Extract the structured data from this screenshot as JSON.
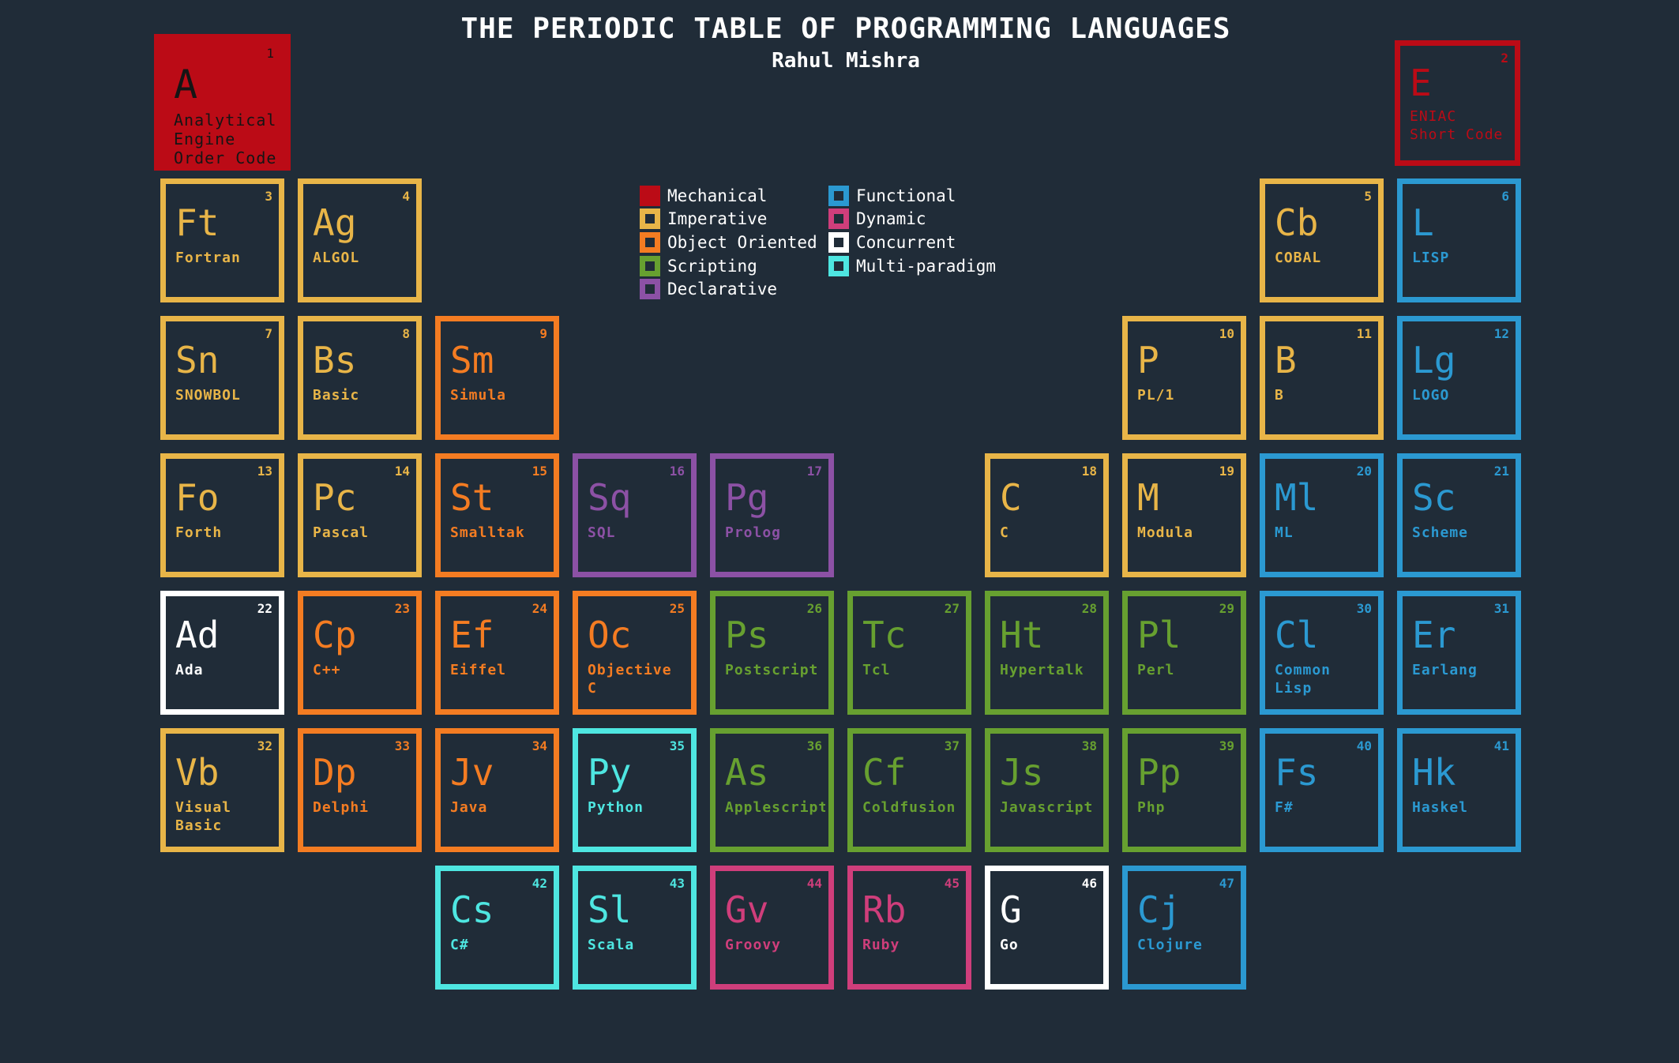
{
  "header": {
    "title": "THE PERIODIC TABLE OF PROGRAMMING LANGUAGES",
    "author": "Rahul Mishra"
  },
  "colors": {
    "background": "#202c38",
    "mechanical": "#bb0b16",
    "imperative": "#e8b548",
    "object_oriented": "#f47c22",
    "scripting": "#67a030",
    "declarative": "#8c51a5",
    "functional": "#2b99d1",
    "dynamic": "#cf3e7b",
    "concurrent": "#ffffff",
    "multi_paradigm": "#4ee6e1"
  },
  "legend": {
    "col1": [
      {
        "label": "Mechanical",
        "category": "mechanical"
      },
      {
        "label": "Imperative",
        "category": "imperative"
      },
      {
        "label": "Object Oriented",
        "category": "object_oriented"
      },
      {
        "label": "Scripting",
        "category": "scripting"
      },
      {
        "label": "Declarative",
        "category": "declarative"
      }
    ],
    "col2": [
      {
        "label": "Functional",
        "category": "functional"
      },
      {
        "label": "Dynamic",
        "category": "dynamic"
      },
      {
        "label": "Concurrent",
        "category": "concurrent"
      },
      {
        "label": "Multi-paradigm",
        "category": "multi_paradigm"
      }
    ]
  },
  "elements": [
    {
      "num": "1",
      "sym": "A",
      "name": "Analytical Engine Order Code",
      "category": "mechanical"
    },
    {
      "num": "2",
      "sym": "E",
      "name": "ENIAC Short Code",
      "category": "mechanical"
    },
    {
      "num": "3",
      "sym": "Ft",
      "name": "Fortran",
      "category": "imperative"
    },
    {
      "num": "4",
      "sym": "Ag",
      "name": "ALGOL",
      "category": "imperative"
    },
    {
      "num": "5",
      "sym": "Cb",
      "name": "COBAL",
      "category": "imperative"
    },
    {
      "num": "6",
      "sym": "L",
      "name": "LISP",
      "category": "functional"
    },
    {
      "num": "7",
      "sym": "Sn",
      "name": "SNOWBOL",
      "category": "imperative"
    },
    {
      "num": "8",
      "sym": "Bs",
      "name": "Basic",
      "category": "imperative"
    },
    {
      "num": "9",
      "sym": "Sm",
      "name": "Simula",
      "category": "object_oriented"
    },
    {
      "num": "10",
      "sym": "P",
      "name": "PL/1",
      "category": "imperative"
    },
    {
      "num": "11",
      "sym": "B",
      "name": "B",
      "category": "imperative"
    },
    {
      "num": "12",
      "sym": "Lg",
      "name": "LOGO",
      "category": "functional"
    },
    {
      "num": "13",
      "sym": "Fo",
      "name": "Forth",
      "category": "imperative"
    },
    {
      "num": "14",
      "sym": "Pc",
      "name": "Pascal",
      "category": "imperative"
    },
    {
      "num": "15",
      "sym": "St",
      "name": "Smalltak",
      "category": "object_oriented"
    },
    {
      "num": "16",
      "sym": "Sq",
      "name": "SQL",
      "category": "declarative"
    },
    {
      "num": "17",
      "sym": "Pg",
      "name": "Prolog",
      "category": "declarative"
    },
    {
      "num": "18",
      "sym": "C",
      "name": "C",
      "category": "imperative"
    },
    {
      "num": "19",
      "sym": "M",
      "name": "Modula",
      "category": "imperative"
    },
    {
      "num": "20",
      "sym": "Ml",
      "name": "ML",
      "category": "functional"
    },
    {
      "num": "21",
      "sym": "Sc",
      "name": "Scheme",
      "category": "functional"
    },
    {
      "num": "22",
      "sym": "Ad",
      "name": "Ada",
      "category": "concurrent"
    },
    {
      "num": "23",
      "sym": "Cp",
      "name": "C++",
      "category": "object_oriented"
    },
    {
      "num": "24",
      "sym": "Ef",
      "name": "Eiffel",
      "category": "object_oriented"
    },
    {
      "num": "25",
      "sym": "Oc",
      "name": "Objective C",
      "category": "object_oriented"
    },
    {
      "num": "26",
      "sym": "Ps",
      "name": "Postscript",
      "category": "scripting"
    },
    {
      "num": "27",
      "sym": "Tc",
      "name": "Tcl",
      "category": "scripting"
    },
    {
      "num": "28",
      "sym": "Ht",
      "name": "Hypertalk",
      "category": "scripting"
    },
    {
      "num": "29",
      "sym": "Pl",
      "name": "Perl",
      "category": "scripting"
    },
    {
      "num": "30",
      "sym": "Cl",
      "name": "Common Lisp",
      "category": "functional"
    },
    {
      "num": "31",
      "sym": "Er",
      "name": "Earlang",
      "category": "functional"
    },
    {
      "num": "32",
      "sym": "Vb",
      "name": "Visual Basic",
      "category": "imperative"
    },
    {
      "num": "33",
      "sym": "Dp",
      "name": "Delphi",
      "category": "object_oriented"
    },
    {
      "num": "34",
      "sym": "Jv",
      "name": "Java",
      "category": "object_oriented"
    },
    {
      "num": "35",
      "sym": "Py",
      "name": "Python",
      "category": "multi_paradigm"
    },
    {
      "num": "36",
      "sym": "As",
      "name": "Applescript",
      "category": "scripting"
    },
    {
      "num": "37",
      "sym": "Cf",
      "name": "Coldfusion",
      "category": "scripting"
    },
    {
      "num": "38",
      "sym": "Js",
      "name": "Javascript",
      "category": "scripting"
    },
    {
      "num": "39",
      "sym": "Pp",
      "name": "Php",
      "category": "scripting"
    },
    {
      "num": "40",
      "sym": "Fs",
      "name": "F#",
      "category": "functional"
    },
    {
      "num": "41",
      "sym": "Hk",
      "name": "Haskel",
      "category": "functional"
    },
    {
      "num": "42",
      "sym": "Cs",
      "name": "C#",
      "category": "multi_paradigm"
    },
    {
      "num": "43",
      "sym": "Sl",
      "name": "Scala",
      "category": "multi_paradigm"
    },
    {
      "num": "44",
      "sym": "Gv",
      "name": "Groovy",
      "category": "dynamic"
    },
    {
      "num": "45",
      "sym": "Rb",
      "name": "Ruby",
      "category": "dynamic"
    },
    {
      "num": "46",
      "sym": "G",
      "name": "Go",
      "category": "concurrent"
    },
    {
      "num": "47",
      "sym": "Cj",
      "name": "Clojure",
      "category": "functional"
    }
  ]
}
